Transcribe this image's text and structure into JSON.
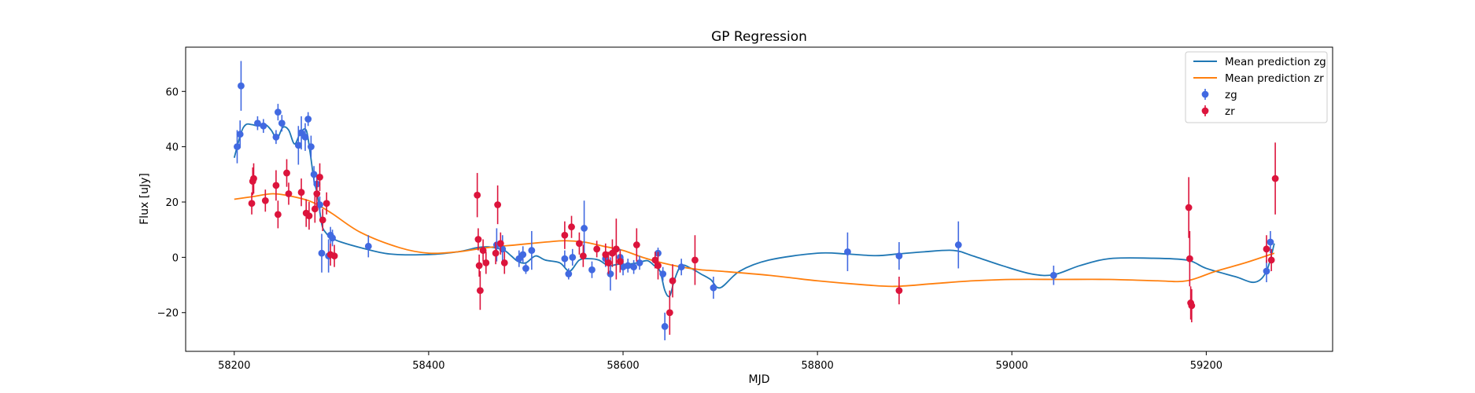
{
  "chart_data": {
    "type": "scatter",
    "title": "GP Regression",
    "xlabel": "MJD",
    "ylabel": "Flux [uJy]",
    "xlim": [
      58150,
      59330
    ],
    "ylim": [
      -34,
      76
    ],
    "xticks": [
      58200,
      58400,
      58600,
      58800,
      59000,
      59200
    ],
    "yticks": [
      -20,
      0,
      20,
      40,
      60
    ],
    "grid": false,
    "legend_position": "top-right",
    "colors": {
      "zg_line": "#1f77b4",
      "zr_line": "#ff7f0e",
      "zg_points": "#4169e1",
      "zr_points": "#dc143c"
    },
    "legend": [
      {
        "label": "Mean prediction zg",
        "kind": "line",
        "color": "#1f77b4"
      },
      {
        "label": "Mean prediction zr",
        "kind": "line",
        "color": "#ff7f0e"
      },
      {
        "label": "zg",
        "kind": "errorbar",
        "color": "#4169e1"
      },
      {
        "label": "zr",
        "kind": "errorbar",
        "color": "#dc143c"
      }
    ],
    "series": [
      {
        "name": "Mean prediction zg",
        "kind": "line",
        "color": "#1f77b4",
        "x": [
          58200,
          58207,
          58212,
          58218,
          58225,
          58232,
          58238,
          58244,
          58250,
          58256,
          58262,
          58268,
          58274,
          58278,
          58282,
          58286,
          58290,
          58294,
          58300,
          58310,
          58330,
          58360,
          58400,
          58430,
          58450,
          58460,
          58470,
          58478,
          58485,
          58492,
          58500,
          58510,
          58520,
          58535,
          58545,
          58555,
          58565,
          58575,
          58585,
          58595,
          58605,
          58615,
          58625,
          58632,
          58638,
          58643,
          58648,
          58653,
          58660,
          58670,
          58680,
          58690,
          58700,
          58720,
          58750,
          58800,
          58830,
          58860,
          58885,
          58910,
          58940,
          58960,
          58990,
          59020,
          59043,
          59070,
          59100,
          59140,
          59180,
          59200,
          59230,
          59250,
          59262,
          59270
        ],
        "y": [
          36,
          45,
          48,
          48,
          47.5,
          48,
          46,
          43,
          47,
          46,
          41,
          45,
          46,
          38,
          28,
          22,
          12,
          9,
          7,
          5.5,
          3.5,
          1.2,
          1,
          2,
          3.5,
          3.8,
          3.3,
          2.5,
          0.5,
          -1.5,
          -2,
          0.5,
          -1,
          -2,
          -5,
          -1,
          -0.5,
          -1,
          -3,
          -2.5,
          -2.5,
          -2,
          -1.2,
          -3,
          -5,
          -12,
          -14,
          -8,
          -3,
          -4,
          -6,
          -8,
          -11,
          -5,
          -1,
          1.5,
          1.2,
          0.6,
          1.3,
          2,
          2.5,
          0.5,
          -3,
          -6,
          -6.3,
          -3,
          -0.5,
          -0.3,
          -1,
          -4,
          -7,
          -9,
          -5,
          5
        ]
      },
      {
        "name": "Mean prediction zr",
        "kind": "line",
        "color": "#ff7f0e",
        "x": [
          58200,
          58220,
          58240,
          58260,
          58280,
          58300,
          58330,
          58370,
          58400,
          58430,
          58460,
          58490,
          58520,
          58540,
          58560,
          58580,
          58600,
          58620,
          58640,
          58660,
          58680,
          58700,
          58750,
          58800,
          58850,
          58880,
          58920,
          58960,
          59000,
          59050,
          59100,
          59150,
          59180,
          59210,
          59240,
          59270
        ],
        "y": [
          21,
          22,
          23,
          22,
          20,
          16,
          9,
          3.5,
          1.5,
          2,
          3.5,
          4.5,
          5.5,
          6,
          5.5,
          4,
          2.5,
          0,
          -2,
          -3.5,
          -4.5,
          -5,
          -6.5,
          -8.5,
          -10,
          -10.5,
          -9.5,
          -8.5,
          -8,
          -8,
          -8,
          -8.5,
          -8.5,
          -5,
          -2,
          1.5
        ]
      },
      {
        "name": "zg",
        "kind": "errorbar",
        "color": "#4169e1",
        "points": [
          [
            58203,
            40,
            6
          ],
          [
            58206,
            44.5,
            5
          ],
          [
            58207,
            62,
            9
          ],
          [
            58224,
            48.5,
            2.5
          ],
          [
            58230,
            47.5,
            2.5
          ],
          [
            58243,
            43.5,
            2.5
          ],
          [
            58245,
            52.5,
            3
          ],
          [
            58249,
            48.5,
            3
          ],
          [
            58266,
            40.5,
            7
          ],
          [
            58269,
            45,
            6
          ],
          [
            58273,
            43.5,
            5
          ],
          [
            58276,
            50,
            2.5
          ],
          [
            58279,
            40,
            4
          ],
          [
            58282,
            30,
            3
          ],
          [
            58285,
            26.5,
            3
          ],
          [
            58288,
            19,
            3
          ],
          [
            58290,
            1.5,
            7
          ],
          [
            58297,
            0.5,
            6
          ],
          [
            58299,
            8,
            3
          ],
          [
            58301,
            7,
            3
          ],
          [
            58338,
            4,
            4
          ],
          [
            58470,
            4.5,
            6
          ],
          [
            58476,
            3,
            5
          ],
          [
            58493,
            -0.5,
            3
          ],
          [
            58497,
            1,
            3
          ],
          [
            58500,
            -4,
            2
          ],
          [
            58506,
            2.5,
            7
          ],
          [
            58540,
            -0.5,
            3
          ],
          [
            58544,
            -6,
            2
          ],
          [
            58548,
            0,
            3
          ],
          [
            58560,
            10.5,
            10
          ],
          [
            58568,
            -4.5,
            3
          ],
          [
            58582,
            -0.5,
            3
          ],
          [
            58587,
            -6,
            6
          ],
          [
            58597,
            0,
            3
          ],
          [
            58600,
            -3.5,
            3
          ],
          [
            58605,
            -3,
            2.5
          ],
          [
            58611,
            -3.5,
            2.5
          ],
          [
            58617,
            -2,
            2.5
          ],
          [
            58636,
            1.5,
            2
          ],
          [
            58641,
            -6,
            2.5
          ],
          [
            58643,
            -25,
            5
          ],
          [
            58660,
            -3.5,
            3
          ],
          [
            58693,
            -11,
            4
          ],
          [
            58831,
            2,
            7
          ],
          [
            58884,
            0.5,
            5
          ],
          [
            58945,
            4.5,
            8.5
          ],
          [
            59043,
            -6.5,
            3.5
          ],
          [
            59262,
            -5,
            4
          ],
          [
            59266,
            5.5,
            4
          ]
        ]
      },
      {
        "name": "zr",
        "kind": "errorbar",
        "color": "#dc143c",
        "points": [
          [
            58218,
            19.5,
            4
          ],
          [
            58219,
            27.5,
            5
          ],
          [
            58220,
            28.5,
            5.5
          ],
          [
            58232,
            20.5,
            4
          ],
          [
            58243,
            26,
            5.5
          ],
          [
            58245,
            15.5,
            5
          ],
          [
            58254,
            30.5,
            5
          ],
          [
            58256,
            23,
            4
          ],
          [
            58269,
            23.5,
            5
          ],
          [
            58274,
            16,
            5
          ],
          [
            58277,
            15,
            5
          ],
          [
            58283,
            17.5,
            5
          ],
          [
            58285,
            23,
            5
          ],
          [
            58288,
            29,
            5
          ],
          [
            58291,
            13.5,
            4
          ],
          [
            58295,
            19.5,
            4
          ],
          [
            58299,
            1,
            4
          ],
          [
            58303,
            0.5,
            4
          ],
          [
            58450,
            22.5,
            8
          ],
          [
            58451,
            6.5,
            4
          ],
          [
            58452,
            -3,
            4
          ],
          [
            58453,
            -12,
            7
          ],
          [
            58456,
            2.5,
            4
          ],
          [
            58459,
            -2,
            4
          ],
          [
            58469,
            1.5,
            4
          ],
          [
            58471,
            19,
            7
          ],
          [
            58474,
            5,
            4
          ],
          [
            58478,
            -2,
            4
          ],
          [
            58540,
            8,
            5
          ],
          [
            58547,
            11,
            4
          ],
          [
            58555,
            5,
            4
          ],
          [
            58559,
            0.5,
            4
          ],
          [
            58573,
            3,
            3
          ],
          [
            58582,
            1,
            4
          ],
          [
            58585,
            -2,
            4
          ],
          [
            58589,
            1.5,
            5
          ],
          [
            58593,
            3,
            11
          ],
          [
            58597,
            -1.5,
            4
          ],
          [
            58614,
            4.5,
            6
          ],
          [
            58633,
            -1,
            3
          ],
          [
            58636,
            -3,
            5
          ],
          [
            58648,
            -20,
            8
          ],
          [
            58651,
            -8.5,
            6
          ],
          [
            58674,
            -1,
            9
          ],
          [
            58884,
            -12,
            5
          ],
          [
            59182,
            18,
            11
          ],
          [
            59183,
            -0.5,
            10
          ],
          [
            59184,
            -16.5,
            6
          ],
          [
            59185,
            -17.5,
            6
          ],
          [
            59262,
            3,
            5
          ],
          [
            59267,
            -1,
            4
          ],
          [
            59271,
            28.5,
            13
          ]
        ]
      }
    ]
  }
}
